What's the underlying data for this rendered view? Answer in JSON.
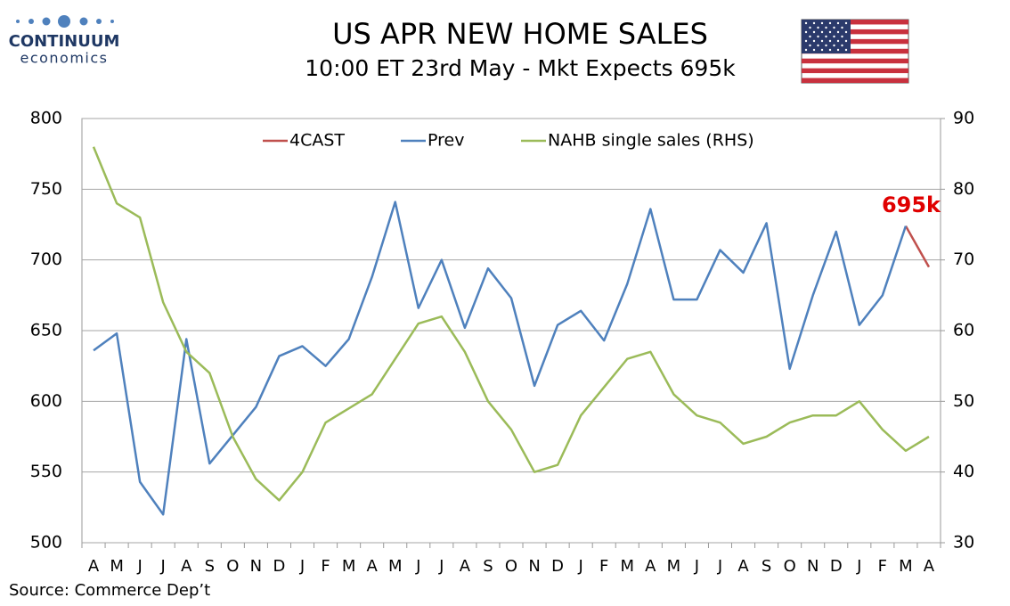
{
  "chart_data": {
    "type": "line",
    "title": "US APR NEW HOME SALES",
    "subtitle": "10:00 ET 23rd May - Mkt Expects 695k",
    "logo": {
      "name": "CONTINUUM",
      "tagline": "economics"
    },
    "source": "Source: Commerce Dep’t",
    "annotation": "695k",
    "categories": [
      "A",
      "M",
      "J",
      "J",
      "A",
      "S",
      "O",
      "N",
      "D",
      "J",
      "F",
      "M",
      "A",
      "M",
      "J",
      "J",
      "A",
      "S",
      "O",
      "N",
      "D",
      "J",
      "F",
      "M",
      "A",
      "M",
      "J",
      "J",
      "A",
      "S",
      "O",
      "N",
      "D",
      "J",
      "F",
      "M",
      "A"
    ],
    "series": [
      {
        "name": "4CAST",
        "color": "#c0504d",
        "values": [
          null,
          null,
          null,
          null,
          null,
          null,
          null,
          null,
          null,
          null,
          null,
          null,
          null,
          null,
          null,
          null,
          null,
          null,
          null,
          null,
          null,
          null,
          null,
          null,
          null,
          null,
          null,
          null,
          null,
          null,
          null,
          null,
          null,
          null,
          null,
          724,
          695
        ]
      },
      {
        "name": "Prev",
        "color": "#4f81bd",
        "values": [
          636,
          648,
          543,
          520,
          644,
          556,
          576,
          596,
          632,
          639,
          625,
          644,
          688,
          741,
          666,
          700,
          652,
          694,
          673,
          611,
          654,
          664,
          643,
          683,
          736,
          672,
          672,
          707,
          691,
          726,
          623,
          675,
          720,
          654,
          675,
          724,
          null
        ]
      },
      {
        "name": "NAHB single sales (RHS)",
        "color": "#9bbb59",
        "axis": "y2",
        "values": [
          86,
          78,
          76,
          64,
          57,
          54,
          45,
          39,
          36,
          40,
          47,
          49,
          51,
          56,
          61,
          62,
          57,
          50,
          46,
          40,
          41,
          48,
          52,
          56,
          57,
          51,
          48,
          47,
          44,
          45,
          47,
          48,
          48,
          50,
          46,
          43,
          45
        ]
      }
    ],
    "ylim": [
      500,
      800
    ],
    "yticks": [
      500,
      550,
      600,
      650,
      700,
      750,
      800
    ],
    "y2lim": [
      30,
      90
    ],
    "y2ticks": [
      30,
      40,
      50,
      60,
      70,
      80,
      90
    ],
    "grid": true,
    "legend": "top"
  }
}
